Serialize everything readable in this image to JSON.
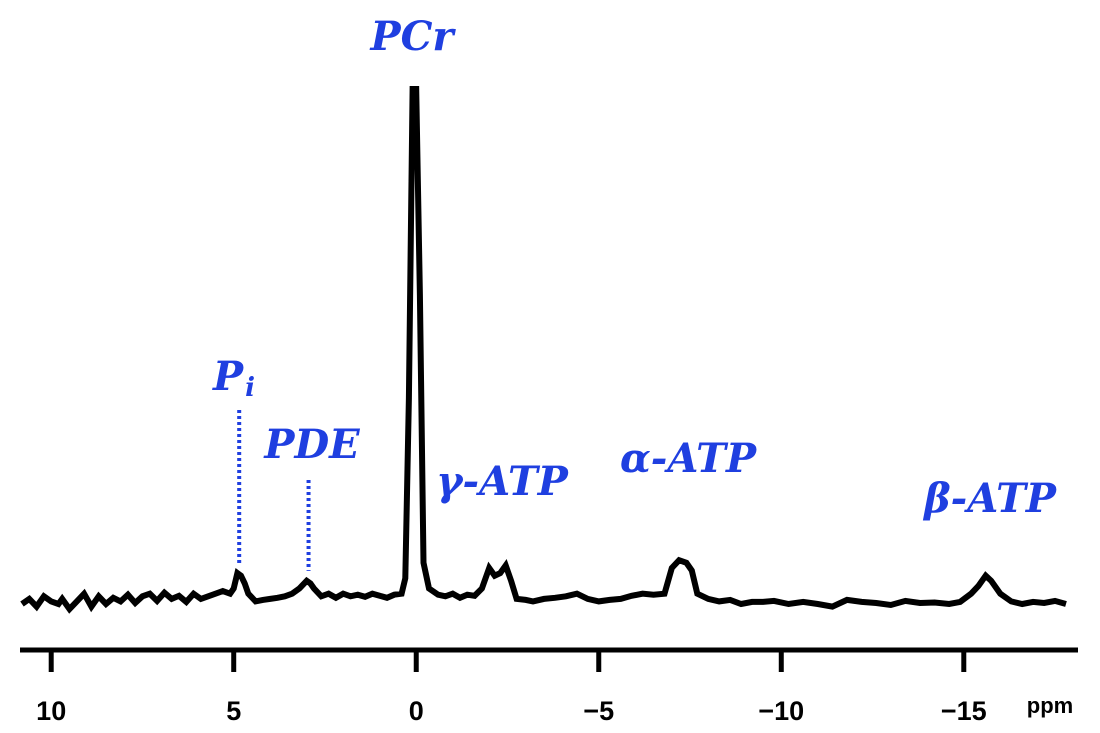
{
  "chart_data": {
    "type": "line",
    "title": "",
    "xlabel": "ppm",
    "ylabel": "",
    "x_reversed": true,
    "xlim": [
      10.8,
      -17.8
    ],
    "ylim": [
      -0.03,
      1.0
    ],
    "grid": false,
    "legend": "none",
    "x_ticks": [
      {
        "value": 10,
        "label": "10"
      },
      {
        "value": 5,
        "label": "5"
      },
      {
        "value": 0,
        "label": "0"
      },
      {
        "value": -5,
        "label": "−5"
      },
      {
        "value": -10,
        "label": "−10"
      },
      {
        "value": -15,
        "label": "−15"
      }
    ],
    "series": [
      {
        "line_color": "#000000",
        "points": [
          [
            10.8,
            0.0
          ],
          [
            10.6,
            0.01
          ],
          [
            10.4,
            -0.005
          ],
          [
            10.2,
            0.015
          ],
          [
            10.0,
            0.005
          ],
          [
            9.8,
            0.0
          ],
          [
            9.7,
            0.01
          ],
          [
            9.5,
            -0.01
          ],
          [
            9.3,
            0.005
          ],
          [
            9.1,
            0.02
          ],
          [
            8.9,
            -0.005
          ],
          [
            8.7,
            0.015
          ],
          [
            8.5,
            0.0
          ],
          [
            8.3,
            0.012
          ],
          [
            8.1,
            0.005
          ],
          [
            7.9,
            0.018
          ],
          [
            7.7,
            0.002
          ],
          [
            7.5,
            0.015
          ],
          [
            7.3,
            0.02
          ],
          [
            7.1,
            0.006
          ],
          [
            6.9,
            0.022
          ],
          [
            6.7,
            0.01
          ],
          [
            6.5,
            0.016
          ],
          [
            6.3,
            0.004
          ],
          [
            6.1,
            0.02
          ],
          [
            5.9,
            0.01
          ],
          [
            5.7,
            0.015
          ],
          [
            5.5,
            0.02
          ],
          [
            5.3,
            0.025
          ],
          [
            5.1,
            0.02
          ],
          [
            5.0,
            0.03
          ],
          [
            4.9,
            0.06
          ],
          [
            4.8,
            0.055
          ],
          [
            4.7,
            0.04
          ],
          [
            4.6,
            0.02
          ],
          [
            4.4,
            0.005
          ],
          [
            4.2,
            0.008
          ],
          [
            4.0,
            0.01
          ],
          [
            3.8,
            0.012
          ],
          [
            3.6,
            0.015
          ],
          [
            3.4,
            0.02
          ],
          [
            3.2,
            0.03
          ],
          [
            3.0,
            0.045
          ],
          [
            2.9,
            0.04
          ],
          [
            2.8,
            0.03
          ],
          [
            2.6,
            0.015
          ],
          [
            2.4,
            0.02
          ],
          [
            2.2,
            0.012
          ],
          [
            2.0,
            0.02
          ],
          [
            1.8,
            0.015
          ],
          [
            1.6,
            0.018
          ],
          [
            1.4,
            0.014
          ],
          [
            1.2,
            0.02
          ],
          [
            1.0,
            0.016
          ],
          [
            0.8,
            0.012
          ],
          [
            0.6,
            0.018
          ],
          [
            0.4,
            0.02
          ],
          [
            0.3,
            0.05
          ],
          [
            0.2,
            0.4
          ],
          [
            0.1,
            1.0
          ],
          [
            0.0,
            1.0
          ],
          [
            -0.1,
            0.6
          ],
          [
            -0.2,
            0.08
          ],
          [
            -0.35,
            0.03
          ],
          [
            -0.6,
            0.018
          ],
          [
            -0.8,
            0.015
          ],
          [
            -1.0,
            0.02
          ],
          [
            -1.2,
            0.012
          ],
          [
            -1.4,
            0.018
          ],
          [
            -1.6,
            0.016
          ],
          [
            -1.8,
            0.03
          ],
          [
            -2.0,
            0.07
          ],
          [
            -2.15,
            0.055
          ],
          [
            -2.3,
            0.06
          ],
          [
            -2.45,
            0.075
          ],
          [
            -2.6,
            0.045
          ],
          [
            -2.75,
            0.01
          ],
          [
            -3.0,
            0.008
          ],
          [
            -3.2,
            0.005
          ],
          [
            -3.5,
            0.01
          ],
          [
            -3.8,
            0.012
          ],
          [
            -4.1,
            0.015
          ],
          [
            -4.4,
            0.02
          ],
          [
            -4.7,
            0.01
          ],
          [
            -5.0,
            0.005
          ],
          [
            -5.3,
            0.008
          ],
          [
            -5.6,
            0.01
          ],
          [
            -5.9,
            0.016
          ],
          [
            -6.2,
            0.02
          ],
          [
            -6.5,
            0.018
          ],
          [
            -6.8,
            0.02
          ],
          [
            -7.0,
            0.07
          ],
          [
            -7.2,
            0.085
          ],
          [
            -7.4,
            0.08
          ],
          [
            -7.55,
            0.065
          ],
          [
            -7.7,
            0.02
          ],
          [
            -8.0,
            0.01
          ],
          [
            -8.3,
            0.005
          ],
          [
            -8.6,
            0.008
          ],
          [
            -8.9,
            0.0
          ],
          [
            -9.2,
            0.004
          ],
          [
            -9.5,
            0.004
          ],
          [
            -9.8,
            0.006
          ],
          [
            -10.2,
            0.0
          ],
          [
            -10.6,
            0.004
          ],
          [
            -11.0,
            0.0
          ],
          [
            -11.4,
            -0.005
          ],
          [
            -11.8,
            0.008
          ],
          [
            -12.2,
            0.004
          ],
          [
            -12.6,
            0.002
          ],
          [
            -13.0,
            -0.002
          ],
          [
            -13.4,
            0.006
          ],
          [
            -13.8,
            0.002
          ],
          [
            -14.2,
            0.003
          ],
          [
            -14.6,
            0.0
          ],
          [
            -14.9,
            0.004
          ],
          [
            -15.2,
            0.02
          ],
          [
            -15.4,
            0.035
          ],
          [
            -15.6,
            0.055
          ],
          [
            -15.75,
            0.045
          ],
          [
            -16.0,
            0.02
          ],
          [
            -16.3,
            0.005
          ],
          [
            -16.6,
            0.0
          ],
          [
            -16.9,
            0.004
          ],
          [
            -17.2,
            0.002
          ],
          [
            -17.5,
            0.006
          ],
          [
            -17.8,
            0.0
          ]
        ]
      }
    ],
    "annotations": [
      {
        "text": "PCr",
        "x": 0.1,
        "y": 1.0,
        "color": "#1f3fe0"
      },
      {
        "text": "P",
        "subscript": "i",
        "x": 4.85,
        "y": 0.06,
        "color": "#1f3fe0",
        "dotted_marker": true
      },
      {
        "text": "PDE",
        "x": 2.95,
        "y": 0.045,
        "color": "#1f3fe0",
        "dotted_marker": true
      },
      {
        "text": "γ-ATP",
        "x": -2.3,
        "y": 0.075,
        "color": "#1f3fe0"
      },
      {
        "text": "α-ATP",
        "x": -7.3,
        "y": 0.085,
        "color": "#1f3fe0"
      },
      {
        "text": "β-ATP",
        "x": -15.6,
        "y": 0.055,
        "color": "#1f3fe0"
      }
    ]
  }
}
